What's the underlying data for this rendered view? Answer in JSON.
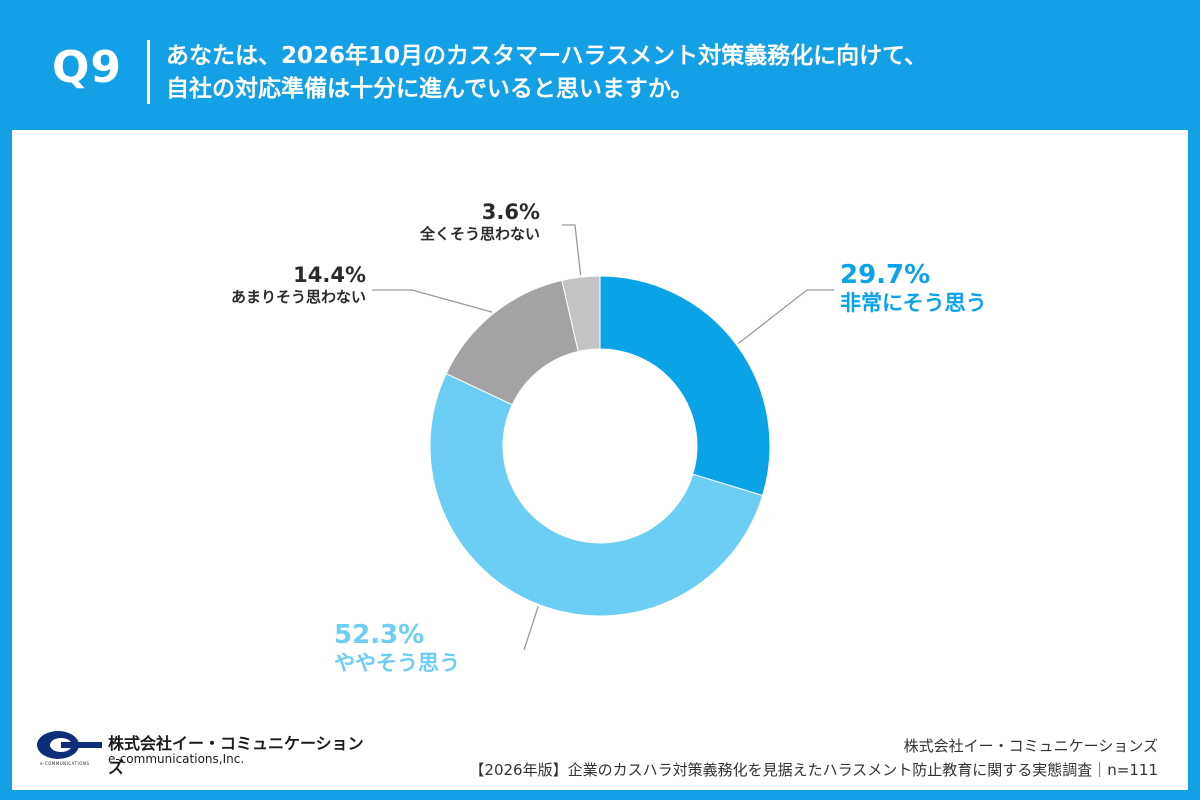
{
  "header": {
    "question_number": "Q9",
    "question_line1": "あなたは、2026年10月のカスタマーハラスメント対策義務化に向けて、",
    "question_line2": "自社の対応準備は十分に進んでいると思いますか。"
  },
  "chart_data": {
    "type": "pie",
    "series": [
      {
        "label": "非常にそう思う",
        "value": 29.7,
        "display": "29.7%",
        "color": "#0aa3e8"
      },
      {
        "label": "ややそう思う",
        "value": 52.3,
        "display": "52.3%",
        "color": "#6ccdf5"
      },
      {
        "label": "あまりそう思わない",
        "value": 14.4,
        "display": "14.4%",
        "color": "#a3a3a6"
      },
      {
        "label": "全くそう思わない",
        "value": 3.6,
        "display": "3.6%",
        "color": "#c4c4c6"
      }
    ]
  },
  "colors": {
    "header_background": "#14a0e6",
    "leader_line": "#9a9a9a",
    "label_dark": "#2b2b2b",
    "label_light_blue": "#6ccdf5",
    "label_blue": "#0aa3e8"
  },
  "logo": {
    "icon": "company-logo-icon",
    "company_name": "株式会社イー・コミュニケーションズ",
    "english_name": "e-communications,Inc.",
    "tiny_text": "e-COMMUNICATIONS"
  },
  "footer": {
    "company": "株式会社イー・コミュニケーションズ",
    "source": "【2026年版】企業のカスハラ対策義務化を見据えたハラスメント防止教育に関する実態調査｜n=111"
  }
}
